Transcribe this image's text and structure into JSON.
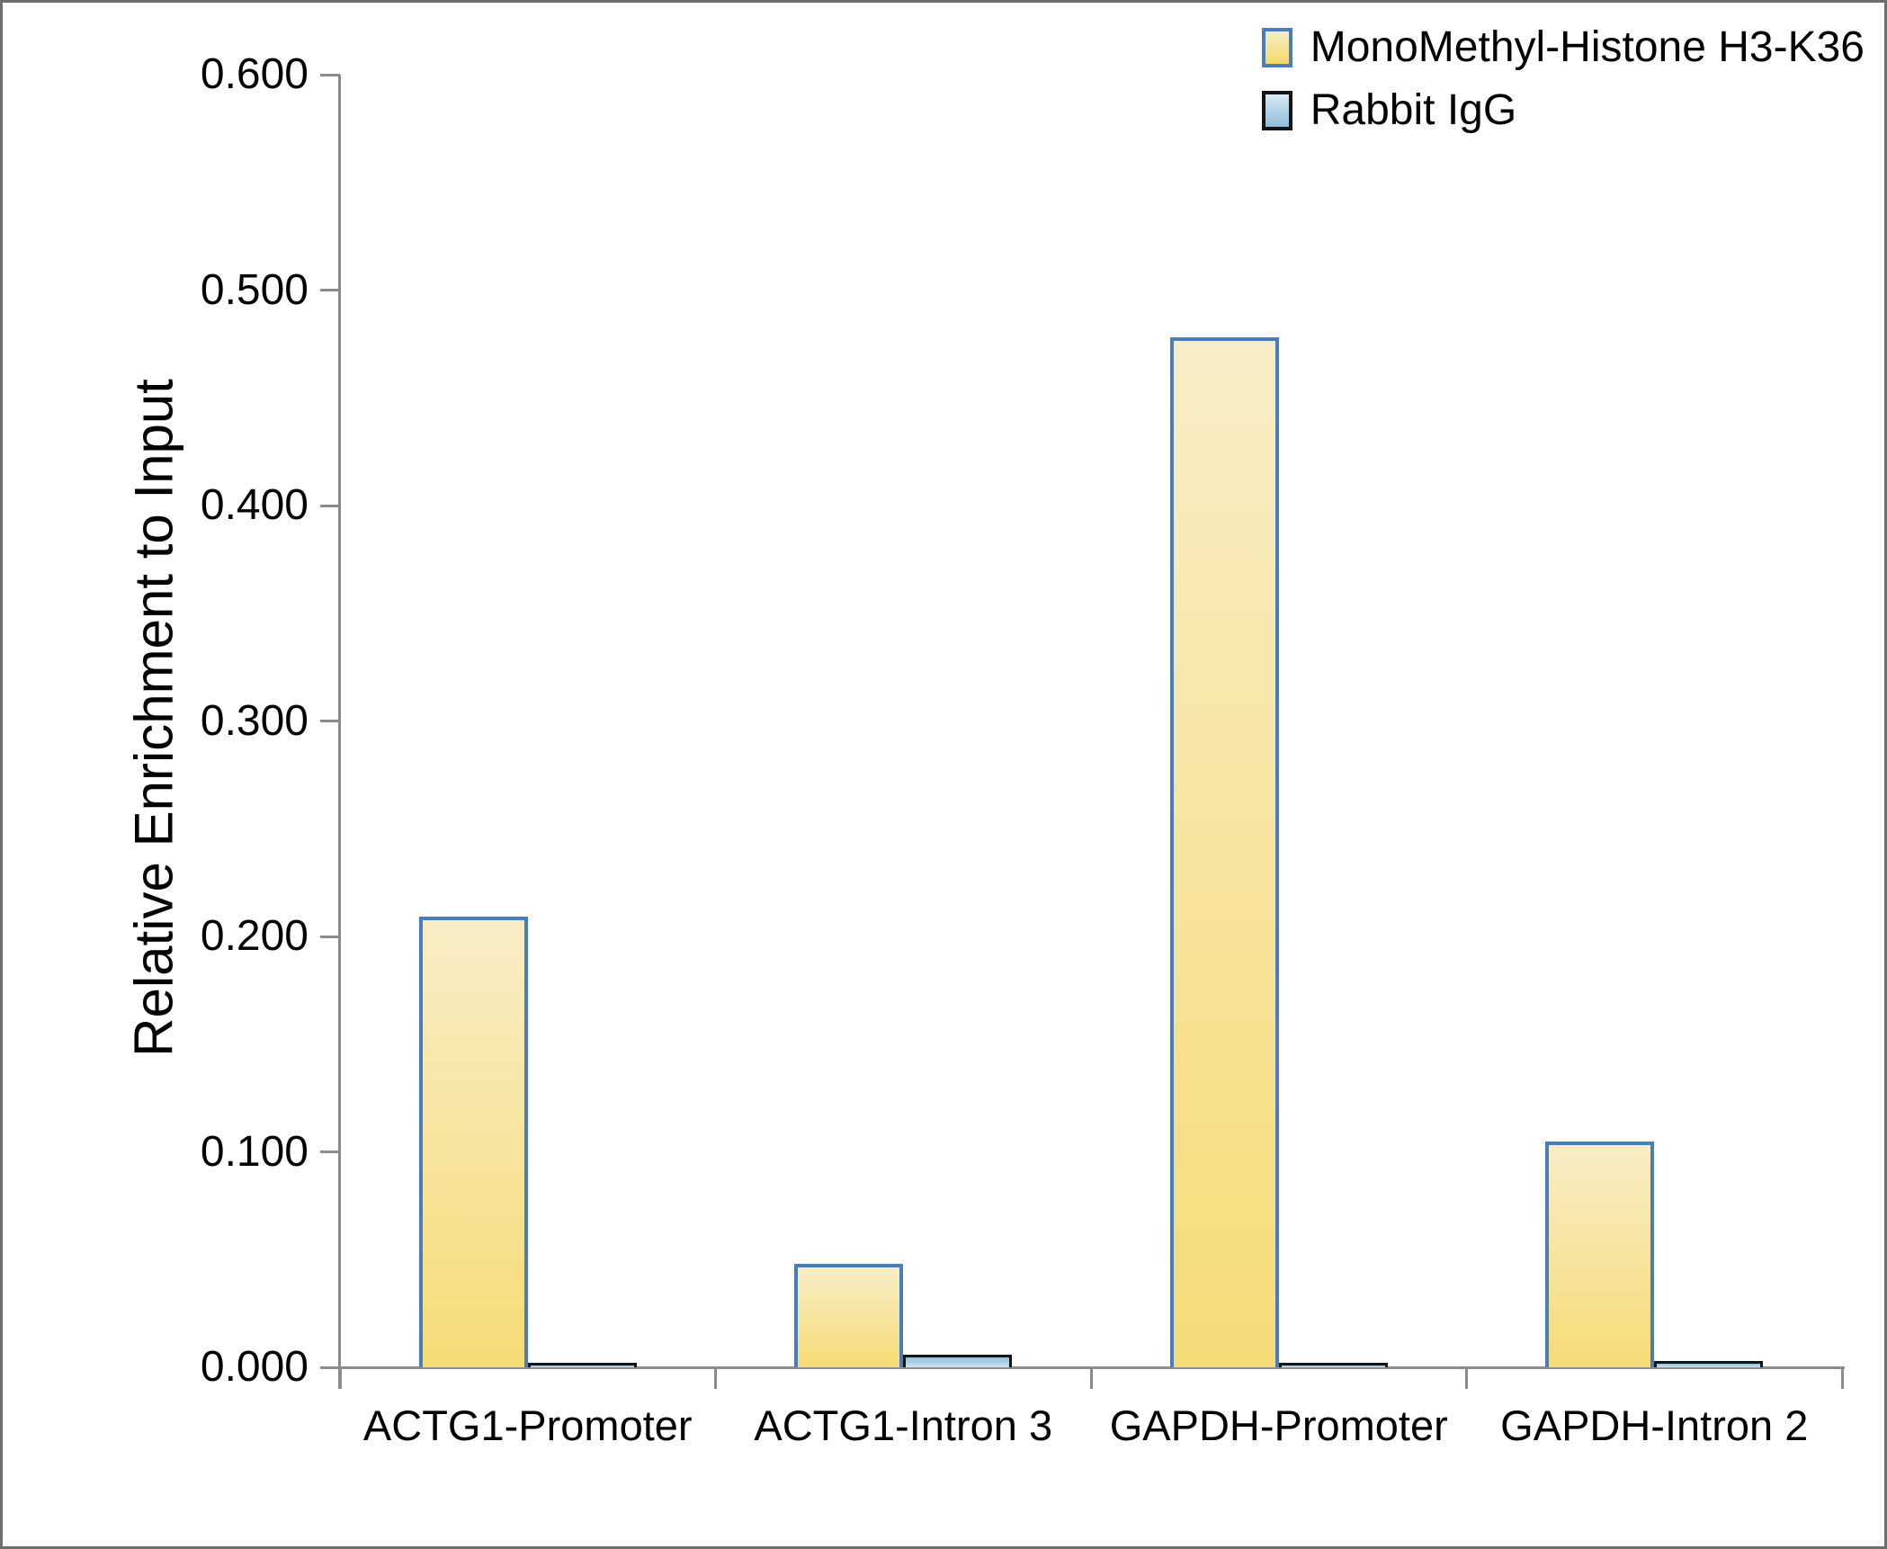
{
  "chart_data": {
    "type": "bar",
    "title": "",
    "ylabel": "Relative Enrichment to Input",
    "categories": [
      "ACTG1-Promoter",
      "ACTG1-Intron 3",
      "GAPDH-Promoter",
      "GAPDH-Intron 2"
    ],
    "series": [
      {
        "name": "MonoMethyl-Histone H3-K36",
        "values": [
          0.209,
          0.048,
          0.478,
          0.105
        ],
        "fill_top": "#F8EDC6",
        "fill_bottom": "#F6DB76",
        "border_color": "#4A7EBB"
      },
      {
        "name": "Rabbit IgG",
        "values": [
          0.002,
          0.006,
          0.002,
          0.003
        ],
        "fill_top": "#8FBEDD",
        "fill_bottom": "#C9E2F1",
        "border_color": "#141414"
      }
    ],
    "ylim": [
      0,
      0.6
    ],
    "ytick_step": 0.1,
    "ytick_labels": [
      "0.000",
      "0.100",
      "0.200",
      "0.300",
      "0.400",
      "0.500",
      "0.600"
    ],
    "grid": false,
    "legend_position": "top-right"
  },
  "legend": {
    "swatch_yellow_top": "#F8EDC6",
    "swatch_yellow_bottom": "#F5D869",
    "swatch_yellow_border": "#4A7EBB",
    "swatch_blue_top": "#D9EAF5",
    "swatch_blue_bottom": "#8FBCDA",
    "swatch_blue_border": "#141414"
  },
  "colors": {
    "axis": "#8B8B8B",
    "text": "#000000",
    "frame_border": "#6E6E6E",
    "background": "#FFFFFF"
  }
}
